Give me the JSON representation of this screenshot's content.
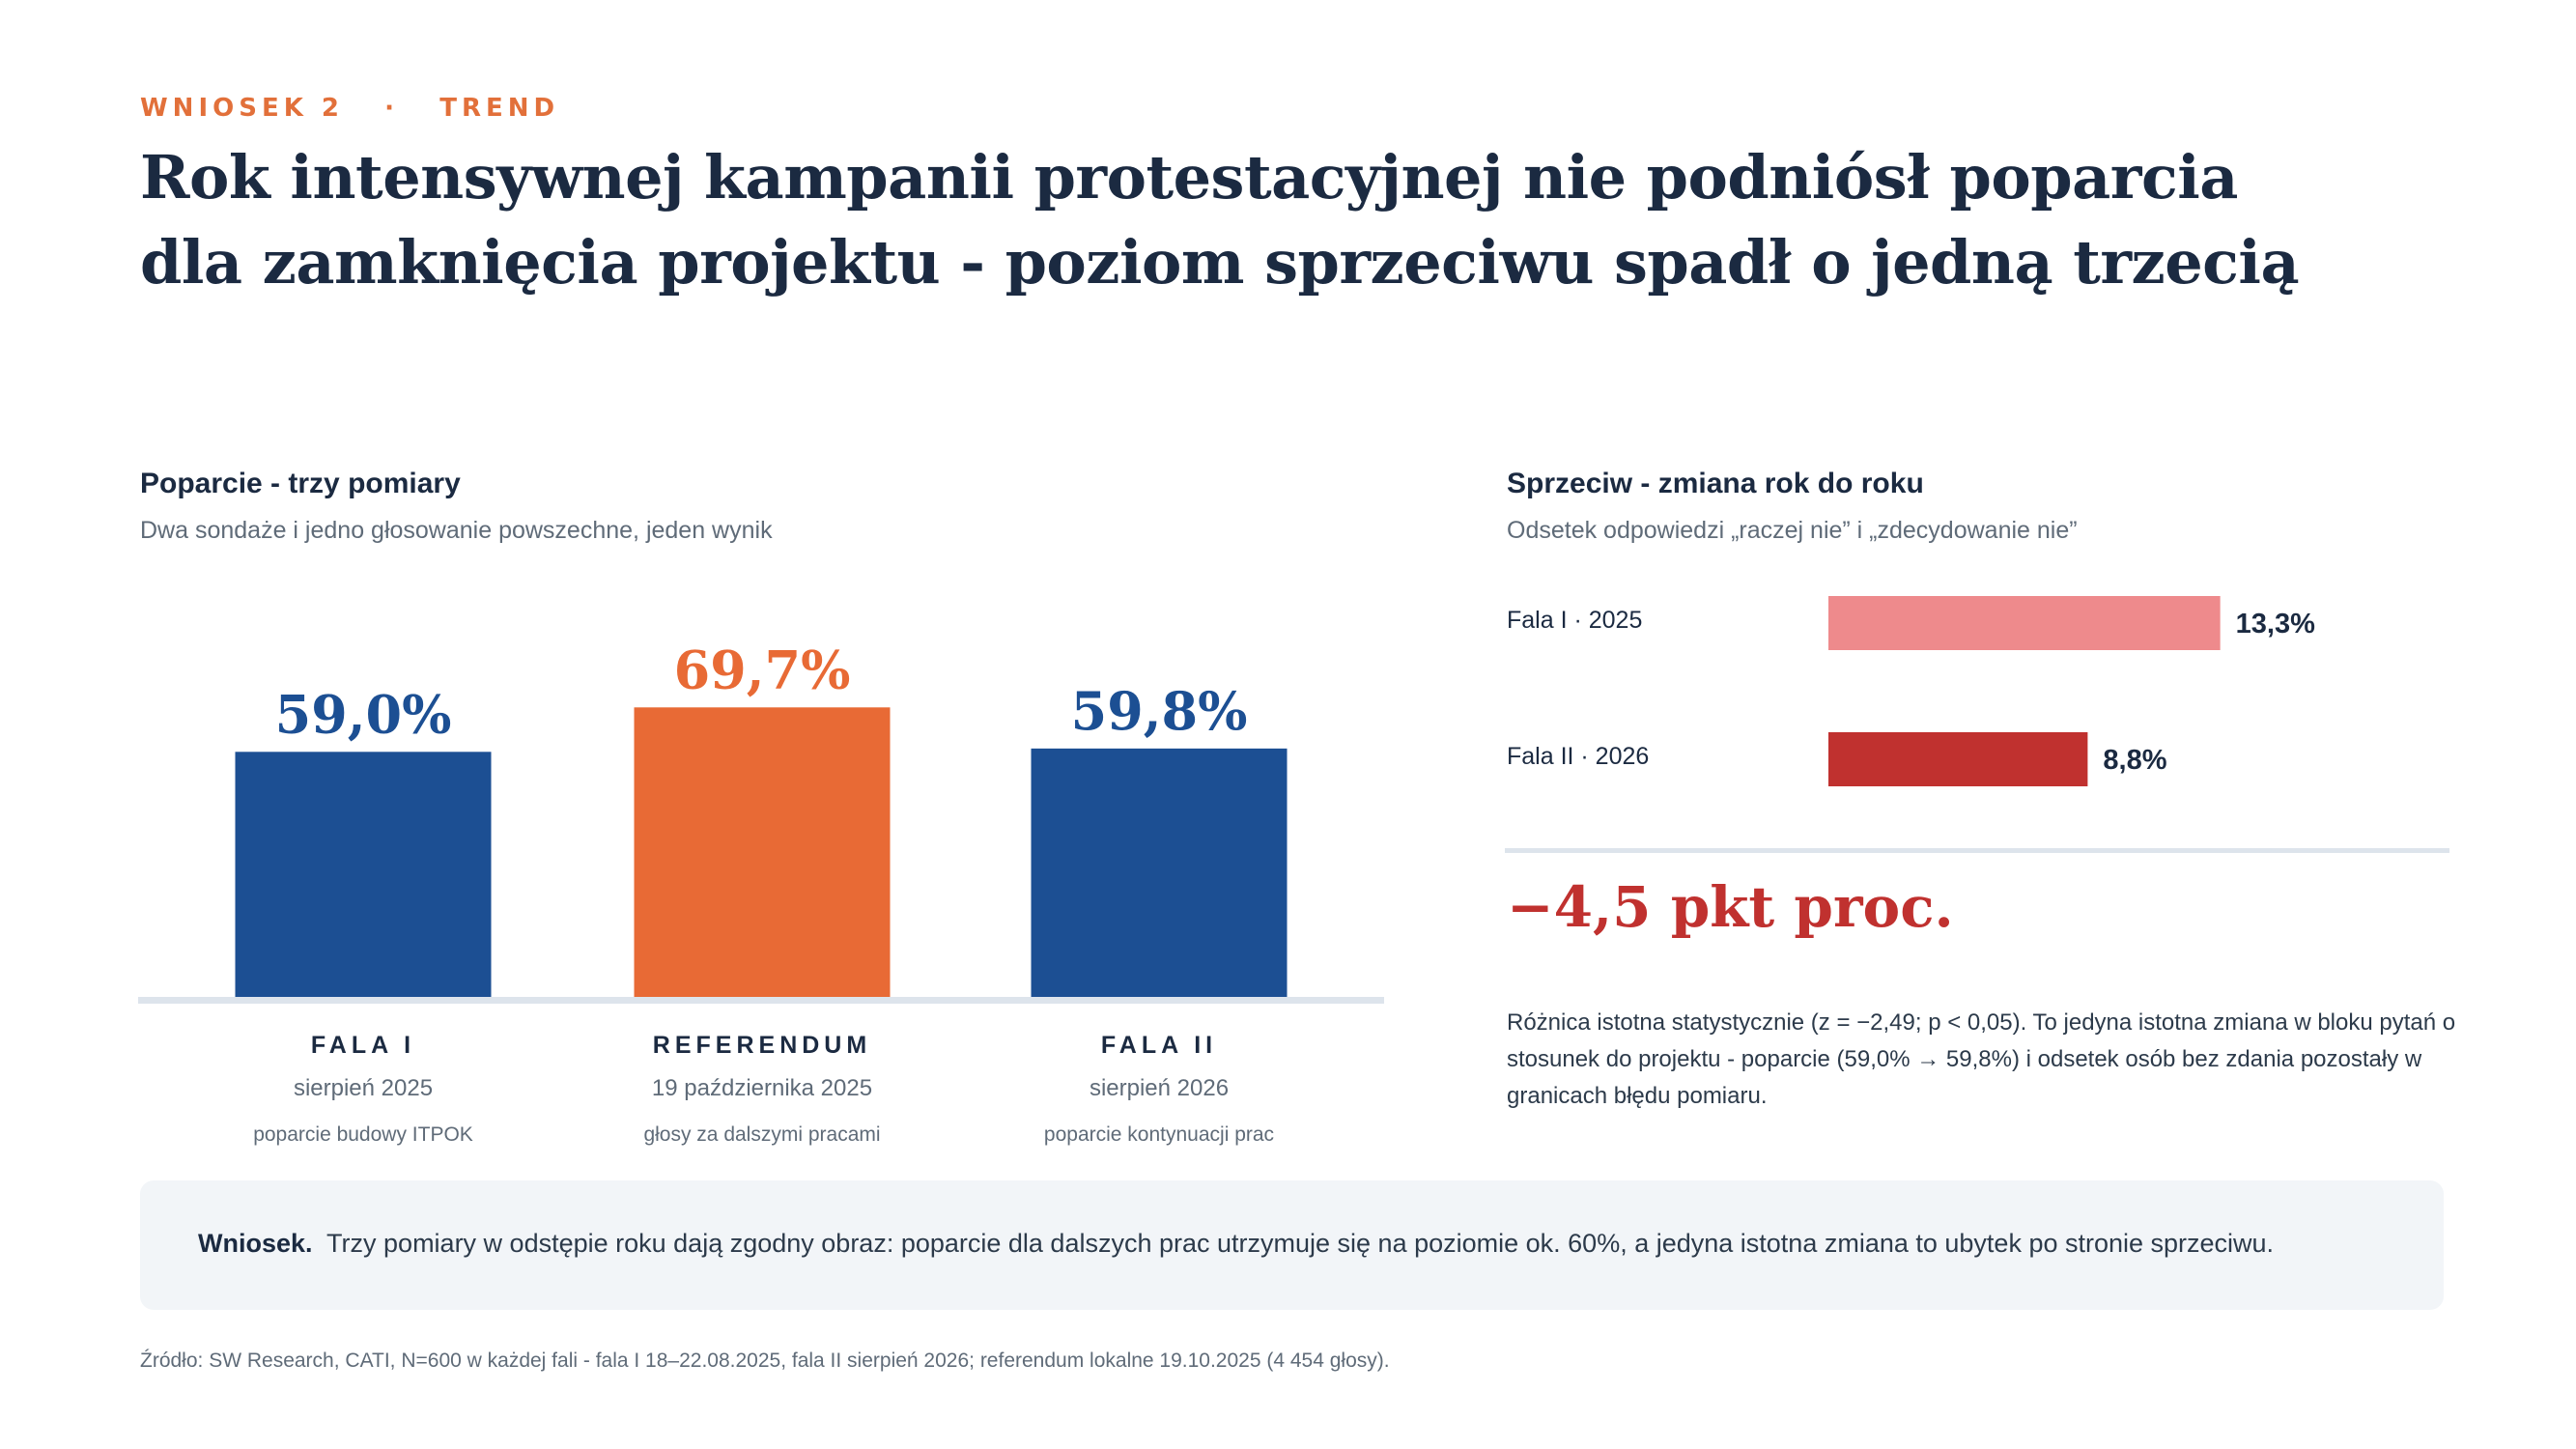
{
  "header": {
    "kicker_a": "WNIOSEK 2",
    "kicker_sep": "·",
    "kicker_b": "TREND",
    "headline_line1": "Rok intensywnej kampanii protestacyjnej nie podniósł poparcia",
    "headline_line2": "dla zamknięcia projektu - poziom sprzeciwu spadł o jedną trzecią"
  },
  "left_panel": {
    "title": "Poparcie - trzy pomiary",
    "subtitle": "Dwa sondaże i jedno głosowanie powszechne, jeden wynik",
    "categories": [
      {
        "name": "FALA I",
        "date": "sierpień 2025",
        "note": "poparcie budowy ITPOK"
      },
      {
        "name": "REFERENDUM",
        "date": "19 października 2025",
        "note": "głosy za dalszymi pracami"
      },
      {
        "name": "FALA II",
        "date": "sierpień 2026",
        "note": "poparcie kontynuacji prac"
      }
    ]
  },
  "right_panel": {
    "title": "Sprzeciw - zmiana rok do roku",
    "subtitle": "Odsetek odpowiedzi „raczej nie” i „zdecydowanie nie”",
    "delta": "−4,5 pkt proc.",
    "note": "Różnica istotna statystycznie (z = −2,49; p < 0,05). To jedyna istotna zmiana w bloku pytań o stosunek do projektu - poparcie (59,0% → 59,8%) i odsetek osób bez zdania pozostały w granicach błędu pomiaru."
  },
  "conclusion": {
    "label": "Wniosek.",
    "text": "Trzy pomiary w odstępie roku dają zgodny obraz: poparcie dla dalszych prac utrzymuje się na poziomie ok. 60%, a jedyna istotna zmiana to ubytek po stronie sprzeciwu."
  },
  "source": "Źródło: SW Research, CATI, N=600 w każdej fali - fala I 18–22.08.2025, fala II sierpień 2026; referendum lokalne 19.10.2025 (4 454 głosy).",
  "colors": {
    "blue": "#1c4f93",
    "orange": "#e86a35",
    "pink": "#ee8a8c",
    "red": "#c0312f",
    "accent": "#e2703a"
  },
  "chart_data": [
    {
      "type": "bar",
      "categories": [
        "FALA I",
        "REFERENDUM",
        "FALA II"
      ],
      "values": [
        59.0,
        69.7,
        59.8
      ],
      "value_labels": [
        "59,0%",
        "69,7%",
        "59,8%"
      ],
      "bar_colors": [
        "#1c4f93",
        "#e86a35",
        "#1c4f93"
      ],
      "title": "Poparcie - trzy pomiary",
      "ylim": [
        0,
        100
      ]
    },
    {
      "type": "bar",
      "orientation": "horizontal",
      "categories": [
        "Fala I · 2025",
        "Fala II · 2026"
      ],
      "values": [
        13.3,
        8.8
      ],
      "value_labels": [
        "13,3%",
        "8,8%"
      ],
      "bar_colors": [
        "#ee8a8c",
        "#c0312f"
      ],
      "title": "Sprzeciw - zmiana rok do roku",
      "xlim": [
        0,
        19
      ]
    }
  ]
}
